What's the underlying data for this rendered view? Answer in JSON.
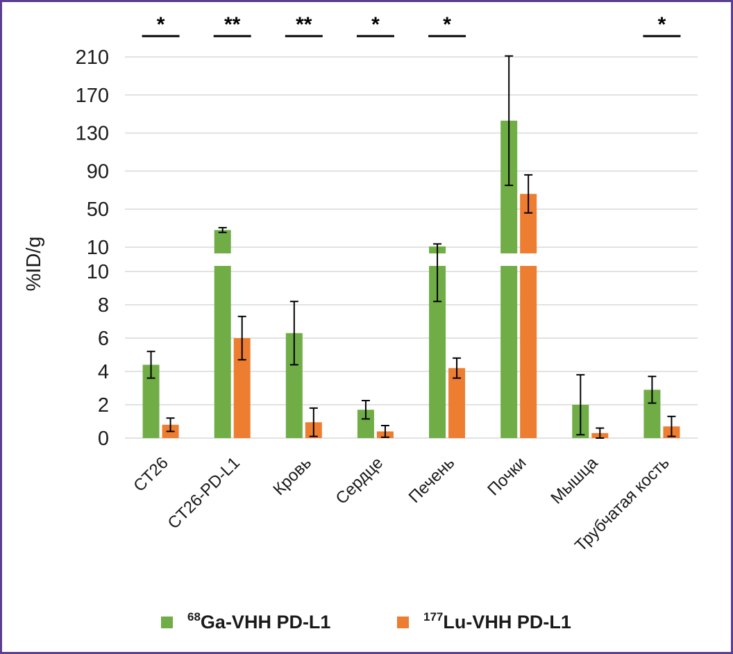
{
  "chart_data": {
    "type": "bar",
    "ylabel": "%ID/g",
    "axis_break": true,
    "lower_axis": {
      "ylim": [
        0,
        10
      ],
      "ticks": [
        "0",
        "2",
        "4",
        "6",
        "8",
        "10"
      ]
    },
    "upper_axis": {
      "ylim": [
        10,
        230
      ],
      "ticks": [
        "10",
        "50",
        "90",
        "130",
        "170",
        "210"
      ]
    },
    "grid": "horizontal",
    "legend_position": "bottom",
    "categories": [
      "CT26",
      "CT26-PD-L1",
      "Кровь",
      "Сердце",
      "Печень",
      "Почки",
      "Мышца",
      "Трубчатая кость"
    ],
    "series": [
      {
        "name": "68Ga-VHH PD-L1",
        "isotope": "68",
        "label": "Ga-VHH PD-L1",
        "color": "#70ad47",
        "values": [
          4.4,
          28,
          6.3,
          1.7,
          10.8,
          143,
          2.0,
          2.9
        ],
        "errors": [
          0.8,
          2.5,
          1.9,
          0.55,
          2.6,
          68,
          1.8,
          0.8
        ]
      },
      {
        "name": "177Lu-VHH PD-L1",
        "isotope": "177",
        "label": "Lu-VHH PD-L1",
        "color": "#ed7d31",
        "values": [
          0.8,
          6.0,
          0.95,
          0.4,
          4.2,
          66,
          0.3,
          0.7
        ],
        "errors": [
          0.4,
          1.3,
          0.85,
          0.35,
          0.6,
          20,
          0.3,
          0.6
        ]
      }
    ],
    "significance": [
      "*",
      "**",
      "**",
      "*",
      "*",
      "",
      "",
      "*"
    ]
  }
}
